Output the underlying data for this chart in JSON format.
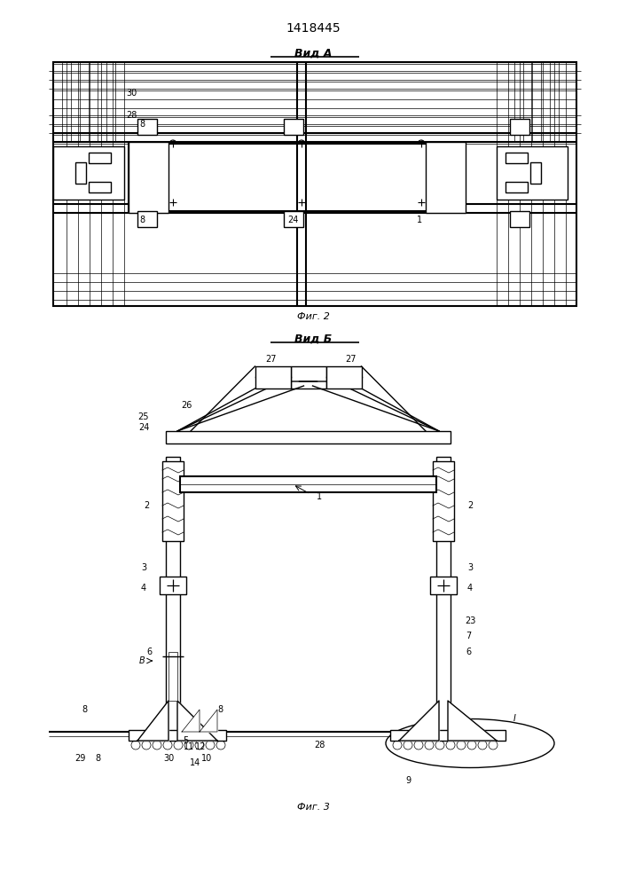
{
  "title": "1418445",
  "fig2_label": "Вид А",
  "fig3_label": "Вид Б",
  "caption2": "Фиг. 2",
  "caption3": "Фиг. 3",
  "line_color": "#000000",
  "bg_color": "#ffffff",
  "lw": 1.0,
  "lw_thick": 1.5,
  "lw_thin": 0.5
}
